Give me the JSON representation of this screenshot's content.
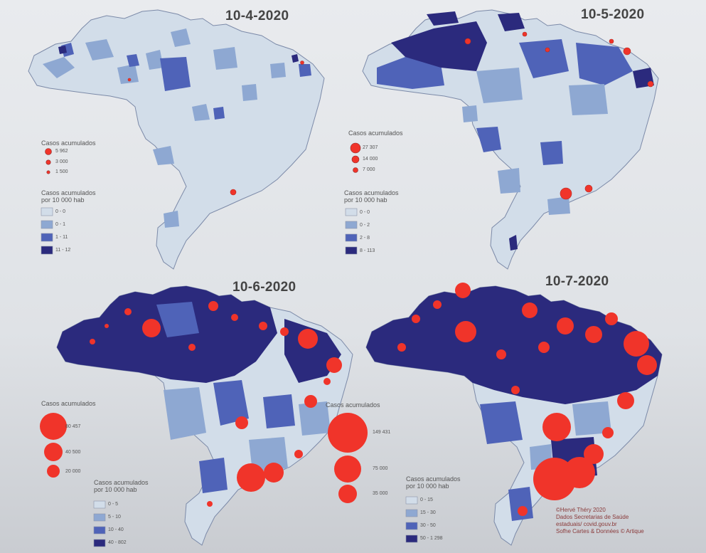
{
  "colors": {
    "class1": "#d2dde9",
    "class2": "#8ea8d2",
    "class3": "#4f63b8",
    "class4": "#2b2a7d",
    "symbol": "#f0342a",
    "border": "#7c8aa8"
  },
  "maps": [
    {
      "date": "10-4-2020",
      "symbol_legend": {
        "title": "Casos acumulados",
        "values": [
          "5 962",
          "3 000",
          "1 500"
        ]
      },
      "choropleth_legend": {
        "title_line1": "Casos acumulados",
        "title_line2": "por 10 000 hab",
        "classes": [
          "0 - 0",
          "0 - 1",
          "1 - 11",
          "11 - 12"
        ]
      }
    },
    {
      "date": "10-5-2020",
      "symbol_legend": {
        "title": "Casos acumulados",
        "values": [
          "27 307",
          "14 000",
          "7 000"
        ]
      },
      "choropleth_legend": {
        "title_line1": "Casos acumulados",
        "title_line2": "por 10 000 hab",
        "classes": [
          "0 - 0",
          "0 - 2",
          "2 - 8",
          "8 - 113"
        ]
      }
    },
    {
      "date": "10-6-2020",
      "symbol_legend": {
        "title": "Casos acumulados",
        "values": [
          "80 457",
          "40 500",
          "20 000"
        ]
      },
      "choropleth_legend": {
        "title_line1": "Casos acumulados",
        "title_line2": "por 10 000 hab",
        "classes": [
          "0 - 5",
          "5 - 10",
          "10 - 40",
          "40 - 802"
        ]
      }
    },
    {
      "date": "10-7-2020",
      "symbol_legend": {
        "title": "Casos acumulados",
        "values": [
          "149 431",
          "75 000",
          "35 000"
        ]
      },
      "choropleth_legend": {
        "title_line1": "Casos acumulados",
        "title_line2": "por 10 000 hab",
        "classes": [
          "0 - 15",
          "15 - 30",
          "30 - 50",
          "50 - 1 298"
        ]
      }
    }
  ],
  "credits": [
    "©Hervé Théry 2020",
    "Dados Secretarias de Saúde",
    "estaduais/ covid.gouv.br",
    "Sofhe Cartes & Données © Artique"
  ]
}
